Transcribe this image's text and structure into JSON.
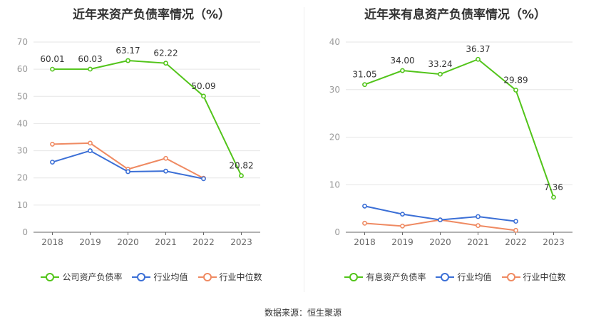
{
  "source_text": "数据来源：恒生聚源",
  "colors": {
    "primary": "#52c41a",
    "avg": "#3b6fd6",
    "median": "#ef8a62"
  },
  "chart_data": [
    {
      "type": "line",
      "title": "近年来资产负债率情况（%）",
      "categories": [
        "2018",
        "2019",
        "2020",
        "2021",
        "2022",
        "2023"
      ],
      "ylim": [
        0,
        70
      ],
      "yticks": [
        0,
        10,
        20,
        30,
        40,
        50,
        60,
        70
      ],
      "grid": true,
      "legend": "bottom",
      "series": [
        {
          "name": "公司资产负债率",
          "color": "#52c41a",
          "labels": true,
          "values": [
            60.01,
            60.03,
            63.17,
            62.22,
            50.09,
            20.82
          ]
        },
        {
          "name": "行业均值",
          "color": "#3b6fd6",
          "labels": false,
          "values": [
            25.8,
            30.0,
            22.3,
            22.5,
            19.7,
            null
          ]
        },
        {
          "name": "行业中位数",
          "color": "#ef8a62",
          "labels": false,
          "values": [
            32.4,
            32.8,
            23.2,
            27.2,
            19.9,
            null
          ]
        }
      ]
    },
    {
      "type": "line",
      "title": "近年来有息资产负债率情况（%）",
      "categories": [
        "2018",
        "2019",
        "2020",
        "2021",
        "2022",
        "2023"
      ],
      "ylim": [
        0,
        40
      ],
      "yticks": [
        0,
        10,
        20,
        30,
        40
      ],
      "grid": true,
      "legend": "bottom",
      "series": [
        {
          "name": "有息资产负债率",
          "color": "#52c41a",
          "labels": true,
          "values": [
            31.05,
            34.0,
            33.24,
            36.37,
            29.89,
            7.36
          ]
        },
        {
          "name": "行业均值",
          "color": "#3b6fd6",
          "labels": false,
          "values": [
            5.5,
            3.8,
            2.6,
            3.3,
            2.3,
            null
          ]
        },
        {
          "name": "行业中位数",
          "color": "#ef8a62",
          "labels": false,
          "values": [
            1.9,
            1.3,
            2.6,
            1.4,
            0.4,
            null
          ]
        }
      ]
    }
  ]
}
